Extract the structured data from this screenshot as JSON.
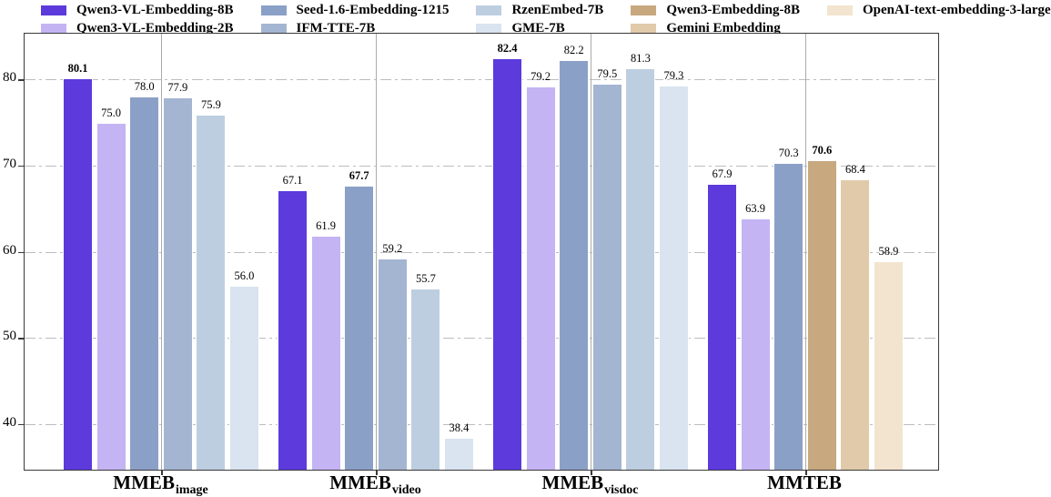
{
  "figure": {
    "background": "#ffffff",
    "spine_color": "#3a3a3a"
  },
  "legend": {
    "position": "top",
    "columns": [
      {
        "entries": [
          {
            "label": "Qwen3-VL-Embedding-8B",
            "series": "qwen3_vl_8b"
          },
          {
            "label": "Qwen3-VL-Embedding-2B",
            "series": "qwen3_vl_2b"
          }
        ]
      },
      {
        "entries": [
          {
            "label": "Seed-1.6-Embedding-1215",
            "series": "seed_16"
          },
          {
            "label": "IFM-TTE-7B",
            "series": "ifm_tte"
          }
        ]
      },
      {
        "entries": [
          {
            "label": "RzenEmbed-7B",
            "series": "rzen"
          },
          {
            "label": "GME-7B",
            "series": "gme"
          }
        ]
      },
      {
        "entries": [
          {
            "label": "Qwen3-Embedding-8B",
            "series": "qwen3_emb_8b"
          },
          {
            "label": "Gemini Embedding",
            "series": "gemini"
          }
        ]
      },
      {
        "entries": [
          {
            "label": "OpenAI-text-embedding-3-large",
            "series": "openai"
          }
        ]
      }
    ]
  },
  "chart_data": {
    "type": "bar",
    "title": "",
    "xlabel": "",
    "ylabel": "",
    "ylim": [
      34.7,
      85.3
    ],
    "yticks": [
      40,
      50,
      60,
      70,
      80
    ],
    "grid": {
      "horizontal_style": "dash-dot",
      "vertical_style": "solid at group centers"
    },
    "legend_position": "top",
    "series": [
      {
        "id": "qwen3_vl_8b",
        "name": "Qwen3-VL-Embedding-8B",
        "color": "#5C3ADC"
      },
      {
        "id": "qwen3_vl_2b",
        "name": "Qwen3-VL-Embedding-2B",
        "color": "#C4B4F3"
      },
      {
        "id": "seed_16",
        "name": "Seed-1.6-Embedding-1215",
        "color": "#8BA0C7"
      },
      {
        "id": "ifm_tte",
        "name": "IFM-TTE-7B",
        "color": "#A4B5D2"
      },
      {
        "id": "rzen",
        "name": "RzenEmbed-7B",
        "color": "#BDCEE1"
      },
      {
        "id": "gme",
        "name": "GME-7B",
        "color": "#D9E4F0"
      },
      {
        "id": "qwen3_emb_8b",
        "name": "Qwen3-Embedding-8B",
        "color": "#C8A87F"
      },
      {
        "id": "gemini",
        "name": "Gemini Embedding",
        "color": "#E1CAA9"
      },
      {
        "id": "openai",
        "name": "OpenAI-text-embedding-3-large",
        "color": "#F3E4CF"
      }
    ],
    "groups": [
      {
        "label": "MMEB",
        "subscript": "image",
        "bars": [
          {
            "series": "qwen3_vl_8b",
            "value": 80.1,
            "bold": true
          },
          {
            "series": "qwen3_vl_2b",
            "value": 75.0,
            "bold": false
          },
          {
            "series": "seed_16",
            "value": 78.0,
            "bold": false
          },
          {
            "series": "ifm_tte",
            "value": 77.9,
            "bold": false
          },
          {
            "series": "rzen",
            "value": 75.9,
            "bold": false
          },
          {
            "series": "gme",
            "value": 56.0,
            "bold": false
          }
        ]
      },
      {
        "label": "MMEB",
        "subscript": "video",
        "bars": [
          {
            "series": "qwen3_vl_8b",
            "value": 67.1,
            "bold": false
          },
          {
            "series": "qwen3_vl_2b",
            "value": 61.9,
            "bold": false
          },
          {
            "series": "seed_16",
            "value": 67.7,
            "bold": true
          },
          {
            "series": "ifm_tte",
            "value": 59.2,
            "bold": false
          },
          {
            "series": "rzen",
            "value": 55.7,
            "bold": false
          },
          {
            "series": "gme",
            "value": 38.4,
            "bold": false
          }
        ]
      },
      {
        "label": "MMEB",
        "subscript": "visdoc",
        "bars": [
          {
            "series": "qwen3_vl_8b",
            "value": 82.4,
            "bold": true
          },
          {
            "series": "qwen3_vl_2b",
            "value": 79.2,
            "bold": false
          },
          {
            "series": "seed_16",
            "value": 82.2,
            "bold": false
          },
          {
            "series": "ifm_tte",
            "value": 79.5,
            "bold": false
          },
          {
            "series": "rzen",
            "value": 81.3,
            "bold": false
          },
          {
            "series": "gme",
            "value": 79.3,
            "bold": false
          }
        ]
      },
      {
        "label": "MMTEB",
        "subscript": "",
        "bars": [
          {
            "series": "qwen3_vl_8b",
            "value": 67.9,
            "bold": false
          },
          {
            "series": "qwen3_vl_2b",
            "value": 63.9,
            "bold": false
          },
          {
            "series": "seed_16",
            "value": 70.3,
            "bold": false
          },
          {
            "series": "qwen3_emb_8b",
            "value": 70.6,
            "bold": true
          },
          {
            "series": "gemini",
            "value": 68.4,
            "bold": false
          },
          {
            "series": "openai",
            "value": 58.9,
            "bold": false
          }
        ]
      }
    ]
  }
}
